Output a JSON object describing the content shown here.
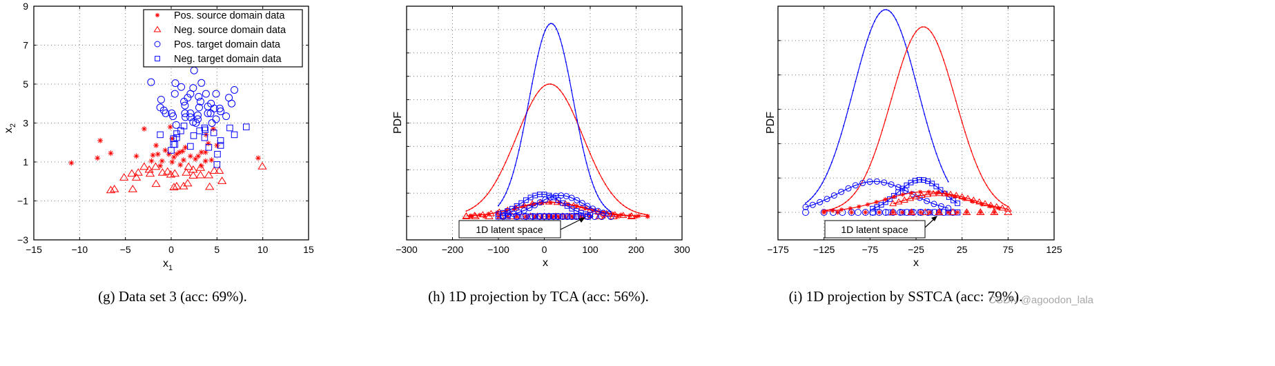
{
  "colors": {
    "source": "#ff0000",
    "target": "#0000ff",
    "axis": "#000000",
    "grid": "#888888"
  },
  "watermark": "CSDN @agoodon_lala",
  "chart_data": [
    {
      "type": "scatter",
      "caption": "(g) Data set 3 (acc: 69%).",
      "xlabel": "x",
      "xlabel_sub": "1",
      "ylabel": "x",
      "ylabel_sub": "2",
      "xlim": [
        -15,
        15
      ],
      "ylim": [
        -3,
        9
      ],
      "xticks": [
        -15,
        -10,
        -5,
        0,
        5,
        10,
        15
      ],
      "yticks": [
        -3,
        -1,
        1,
        3,
        5,
        7,
        9
      ],
      "xtick_labels": [
        "−15",
        "−10",
        "−5",
        "0",
        "5",
        "10",
        "15"
      ],
      "ytick_labels": [
        "−3",
        "−1",
        "1",
        "3",
        "5",
        "7",
        "9"
      ],
      "grid": true,
      "legend_position": "top-right",
      "series": [
        {
          "name": "Pos. source domain data",
          "marker": "star",
          "color": "#ff0000",
          "points": [
            [
              -10.9,
              0.95
            ],
            [
              -8.05,
              1.2
            ],
            [
              -7.75,
              2.1
            ],
            [
              -6.6,
              1.45
            ],
            [
              -3.8,
              1.3
            ],
            [
              -2.95,
              2.7
            ],
            [
              -0.1,
              2.8
            ],
            [
              4.6,
              2.7
            ],
            [
              3.8,
              2.4
            ],
            [
              9.5,
              1.2
            ],
            [
              -1.65,
              1.85
            ],
            [
              -0.65,
              1.6
            ],
            [
              -2.0,
              1.35
            ],
            [
              -1.45,
              1.4
            ],
            [
              -2.15,
              1.05
            ],
            [
              -1.2,
              0.8
            ],
            [
              -1.0,
              1.05
            ],
            [
              -0.25,
              1.4
            ],
            [
              0.1,
              1.0
            ],
            [
              0.3,
              1.25
            ],
            [
              0.6,
              1.4
            ],
            [
              0.9,
              1.5
            ],
            [
              1.25,
              1.55
            ],
            [
              1.55,
              1.75
            ],
            [
              1.0,
              0.85
            ],
            [
              1.35,
              1.1
            ],
            [
              2.1,
              1.3
            ],
            [
              2.65,
              1.15
            ],
            [
              2.95,
              1.3
            ],
            [
              3.3,
              1.5
            ],
            [
              3.75,
              1.5
            ],
            [
              3.75,
              1.05
            ],
            [
              4.4,
              1.1
            ],
            [
              4.05,
              1.95
            ],
            [
              5.0,
              1.85
            ],
            [
              3.3,
              0.8
            ],
            [
              0.1,
              2.2
            ]
          ]
        },
        {
          "name": "Neg. source domain data",
          "marker": "triangle",
          "color": "#ff0000",
          "points": [
            [
              -6.6,
              -0.45
            ],
            [
              -6.2,
              -0.4
            ],
            [
              -4.2,
              -0.4
            ],
            [
              -5.15,
              0.2
            ],
            [
              -4.3,
              0.4
            ],
            [
              -3.8,
              0.2
            ],
            [
              -3.6,
              0.45
            ],
            [
              -2.95,
              0.75
            ],
            [
              -2.3,
              0.4
            ],
            [
              -2.4,
              0.6
            ],
            [
              -1.7,
              0.75
            ],
            [
              -1.65,
              -0.13
            ],
            [
              -0.95,
              0.45
            ],
            [
              -0.4,
              0.5
            ],
            [
              -0.05,
              0.35
            ],
            [
              0.4,
              0.4
            ],
            [
              0.3,
              -0.3
            ],
            [
              0.6,
              -0.25
            ],
            [
              1.35,
              -0.25
            ],
            [
              1.8,
              -0.1
            ],
            [
              1.65,
              0.45
            ],
            [
              1.9,
              0.75
            ],
            [
              2.4,
              0.6
            ],
            [
              2.4,
              0.3
            ],
            [
              3.2,
              0.32
            ],
            [
              3.2,
              0.7
            ],
            [
              4.1,
              0.32
            ],
            [
              4.2,
              -0.28
            ],
            [
              4.7,
              0.55
            ],
            [
              5.25,
              0.55
            ],
            [
              5.55,
              0.02
            ],
            [
              9.95,
              0.77
            ]
          ]
        },
        {
          "name": "Pos. target domain data",
          "marker": "circle",
          "color": "#0000ff",
          "points": [
            [
              -2.2,
              5.1
            ],
            [
              0.45,
              5.05
            ],
            [
              1.1,
              4.85
            ],
            [
              2.4,
              4.8
            ],
            [
              3.3,
              5.06
            ],
            [
              2.5,
              5.7
            ],
            [
              3.8,
              4.5
            ],
            [
              4.9,
              4.5
            ],
            [
              6.9,
              4.7
            ],
            [
              6.3,
              4.3
            ],
            [
              6.6,
              4.0
            ],
            [
              0.4,
              4.5
            ],
            [
              -1.1,
              4.2
            ],
            [
              -1.2,
              3.8
            ],
            [
              -0.8,
              3.65
            ],
            [
              -0.6,
              3.5
            ],
            [
              0.06,
              3.5
            ],
            [
              0.2,
              3.35
            ],
            [
              0.55,
              2.9
            ],
            [
              1.4,
              4.1
            ],
            [
              1.5,
              3.9
            ],
            [
              1.8,
              4.3
            ],
            [
              2.1,
              4.5
            ],
            [
              3.0,
              4.35
            ],
            [
              3.2,
              4.1
            ],
            [
              3.05,
              3.8
            ],
            [
              1.5,
              3.5
            ],
            [
              1.55,
              3.3
            ],
            [
              2.1,
              3.5
            ],
            [
              2.1,
              3.3
            ],
            [
              2.4,
              3.05
            ],
            [
              2.7,
              3.0
            ],
            [
              2.9,
              3.4
            ],
            [
              2.9,
              3.2
            ],
            [
              4.0,
              3.85
            ],
            [
              4.0,
              3.5
            ],
            [
              4.35,
              4.0
            ],
            [
              4.7,
              3.75
            ],
            [
              4.3,
              3.5
            ],
            [
              5.3,
              3.75
            ],
            [
              5.4,
              3.6
            ],
            [
              4.9,
              3.2
            ],
            [
              4.45,
              3.0
            ],
            [
              6.0,
              3.35
            ]
          ]
        },
        {
          "name": "Neg. target domain data",
          "marker": "square",
          "color": "#0000ff",
          "points": [
            [
              -1.2,
              2.4
            ],
            [
              0,
              1.6
            ],
            [
              0.25,
              1.9
            ],
            [
              0.4,
              1.9
            ],
            [
              0.25,
              2.2
            ],
            [
              0.6,
              2.25
            ],
            [
              0.6,
              2.45
            ],
            [
              1.05,
              2.6
            ],
            [
              1.4,
              2.85
            ],
            [
              2.1,
              1.8
            ],
            [
              2.45,
              2.35
            ],
            [
              3.1,
              2.6
            ],
            [
              3.65,
              2.75
            ],
            [
              3.7,
              2.65
            ],
            [
              3.65,
              2.25
            ],
            [
              4.65,
              2.5
            ],
            [
              4.1,
              1.75
            ],
            [
              5.4,
              2.1
            ],
            [
              5.4,
              1.85
            ],
            [
              5.05,
              1.4
            ],
            [
              5.0,
              0.87
            ],
            [
              6.4,
              2.75
            ],
            [
              6.9,
              2.4
            ],
            [
              8.2,
              2.8
            ]
          ]
        }
      ]
    },
    {
      "type": "line",
      "caption": "(h) 1D projection by TCA (acc: 56%).",
      "xlabel": "x",
      "ylabel": "PDF",
      "xlim": [
        -300,
        300
      ],
      "ylim": [
        -1,
        9
      ],
      "xticks": [
        -300,
        -200,
        -100,
        0,
        100,
        200,
        300
      ],
      "xtick_labels": [
        "−300",
        "−200",
        "−100",
        "0",
        "100",
        "200",
        "300"
      ],
      "yticks": [
        0,
        1,
        2,
        3,
        4,
        5,
        6,
        7,
        8
      ],
      "grid": true,
      "annotation": "1D latent space",
      "curves": [
        {
          "class": "source",
          "marker": "dot",
          "color": "#ff0000",
          "mean": 12,
          "std": 72,
          "peak": 5.67,
          "range": [
            -170,
            225
          ]
        },
        {
          "class": "target",
          "marker": "dot",
          "color": "#0000ff",
          "mean": 15,
          "std": 48,
          "peak": 8.26,
          "range": [
            -100,
            145
          ]
        },
        {
          "class": "pos-source",
          "marker": "star",
          "color": "#ff0000",
          "mean": 15,
          "std": 75,
          "peak": 0.6,
          "range": [
            -160,
            225
          ]
        },
        {
          "class": "neg-source",
          "marker": "triangle",
          "color": "#ff0000",
          "mean": 10,
          "std": 70,
          "peak": 0.62,
          "range": [
            -170,
            190
          ]
        },
        {
          "class": "pos-target",
          "marker": "circle",
          "color": "#0000ff",
          "mean": 35,
          "std": 50,
          "peak": 0.9,
          "range": [
            -90,
            140
          ]
        },
        {
          "class": "neg-target",
          "marker": "square",
          "color": "#0000ff",
          "mean": -5,
          "std": 45,
          "peak": 0.95,
          "range": [
            -100,
            100
          ]
        }
      ],
      "latent_points": [
        {
          "marker": "triangle",
          "color": "#ff0000",
          "x": [
            -170,
            -150,
            -120,
            -95,
            -70,
            -50,
            -30,
            -15,
            0,
            10,
            25,
            40,
            55,
            70,
            90,
            120,
            150,
            190
          ]
        },
        {
          "marker": "star",
          "color": "#ff0000",
          "x": [
            -160,
            -130,
            -100,
            -80,
            -60,
            -40,
            -20,
            -5,
            10,
            20,
            30,
            45,
            60,
            80,
            100,
            130,
            160,
            200,
            225
          ]
        },
        {
          "marker": "circle",
          "color": "#0000ff",
          "x": [
            -90,
            -60,
            -40,
            -25,
            -10,
            0,
            10,
            20,
            30,
            40,
            50,
            60,
            70,
            80,
            95,
            110,
            125,
            145
          ]
        },
        {
          "marker": "square",
          "color": "#0000ff",
          "x": [
            -100,
            -80,
            -60,
            -45,
            -30,
            -20,
            -10,
            0,
            10,
            20,
            30,
            45,
            60,
            75,
            95
          ]
        }
      ]
    },
    {
      "type": "line",
      "caption": "(i) 1D projection by SSTCA (acc: 79%).",
      "xlabel": "x",
      "ylabel": "PDF",
      "xlim": [
        -175,
        125
      ],
      "ylim": [
        -0.8,
        6
      ],
      "xticks": [
        -175,
        -125,
        -75,
        -25,
        25,
        75,
        125
      ],
      "xtick_labels": [
        "−175",
        "−125",
        "−75",
        "−25",
        "25",
        "75",
        "125"
      ],
      "yticks": [
        0,
        1,
        2,
        3,
        4,
        5
      ],
      "grid": true,
      "annotation": "1D latent space",
      "curves": [
        {
          "class": "target",
          "marker": "dot",
          "color": "#0000ff",
          "mean": -58,
          "std": 35,
          "peak": 5.9,
          "range": [
            -145,
            10
          ]
        },
        {
          "class": "source",
          "marker": "dot",
          "color": "#ff0000",
          "mean": -17,
          "std": 35,
          "peak": 5.4,
          "range": [
            -125,
            75
          ]
        },
        {
          "class": "pos-target",
          "marker": "circle",
          "color": "#0000ff",
          "mean": -70,
          "std": 40,
          "peak": 0.9,
          "range": [
            -145,
            10
          ]
        },
        {
          "class": "neg-target",
          "marker": "square",
          "color": "#0000ff",
          "mean": -20,
          "std": 25,
          "peak": 0.95,
          "range": [
            -72,
            20
          ]
        },
        {
          "class": "pos-source",
          "marker": "star",
          "color": "#ff0000",
          "mean": -15,
          "std": 45,
          "peak": 0.6,
          "range": [
            -125,
            65
          ]
        },
        {
          "class": "neg-source",
          "marker": "triangle",
          "color": "#ff0000",
          "mean": 0,
          "std": 40,
          "peak": 0.55,
          "range": [
            -50,
            75
          ]
        }
      ],
      "latent_points": [
        {
          "marker": "circle",
          "color": "#0000ff",
          "x": [
            -145,
            -125,
            -115,
            -105,
            -95,
            -88,
            -80,
            -72,
            -65,
            -58,
            -50,
            -42,
            -35,
            -28,
            -20,
            -12,
            -5,
            5,
            15
          ]
        },
        {
          "marker": "star",
          "color": "#ff0000",
          "x": [
            -125,
            -110,
            -95,
            -80,
            -65,
            -50,
            -40,
            -30,
            -20,
            -10,
            0,
            10,
            20,
            30,
            45,
            60
          ]
        },
        {
          "marker": "square",
          "color": "#0000ff",
          "x": [
            -72,
            -55,
            -40,
            -30,
            -20,
            -10,
            0,
            10,
            20
          ]
        },
        {
          "marker": "triangle",
          "color": "#ff0000",
          "x": [
            -50,
            -30,
            -15,
            0,
            15,
            30,
            45,
            60,
            75
          ]
        }
      ]
    }
  ]
}
